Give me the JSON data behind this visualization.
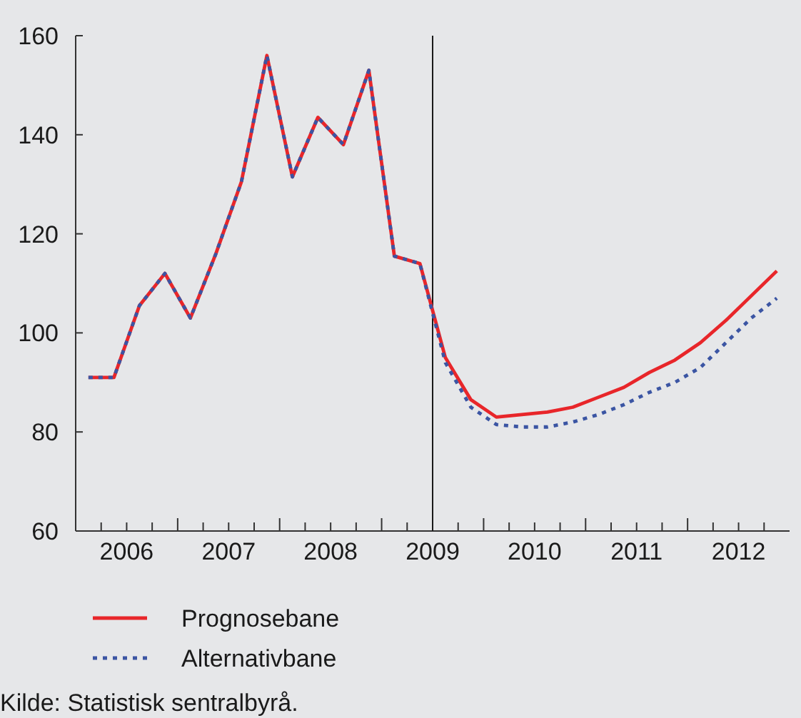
{
  "chart_data": {
    "type": "line",
    "x": [
      2006.125,
      2006.375,
      2006.625,
      2006.875,
      2007.125,
      2007.375,
      2007.625,
      2007.875,
      2008.125,
      2008.375,
      2008.625,
      2008.875,
      2009.125,
      2009.375,
      2009.625,
      2009.875,
      2010.125,
      2010.375,
      2010.625,
      2010.875,
      2011.125,
      2011.375,
      2011.625,
      2011.875,
      2012.125,
      2012.375,
      2012.625,
      2012.875
    ],
    "series": [
      {
        "name": "Prognosebane",
        "color": "#e8262a",
        "line_style": "solid",
        "values": [
          91,
          91,
          105.5,
          112,
          103,
          116,
          130.5,
          156,
          131.5,
          143.5,
          138,
          153,
          115.5,
          114,
          95,
          86.5,
          83,
          83.5,
          84,
          85,
          87,
          89,
          92,
          94.5,
          98,
          102.5,
          107.5,
          112.5
        ]
      },
      {
        "name": "Alternativbane",
        "color": "#3b55a3",
        "line_style": "dotted",
        "values": [
          91,
          91,
          105.5,
          112,
          103,
          116,
          130.5,
          156,
          131.5,
          143.5,
          138,
          153,
          115.5,
          114,
          94,
          85,
          81.5,
          81,
          81,
          82,
          83.5,
          85.5,
          88,
          90,
          93,
          98,
          103,
          107
        ]
      }
    ],
    "xlim": [
      2006,
      2013
    ],
    "xticks": [
      {
        "value": 2006,
        "label": null
      },
      {
        "value": 2006.25,
        "label": null
      },
      {
        "value": 2006.5,
        "label": "2006"
      },
      {
        "value": 2006.75,
        "label": null
      },
      {
        "value": 2007,
        "label": null
      },
      {
        "value": 2007.25,
        "label": null
      },
      {
        "value": 2007.5,
        "label": "2007"
      },
      {
        "value": 2007.75,
        "label": null
      },
      {
        "value": 2008,
        "label": null
      },
      {
        "value": 2008.25,
        "label": null
      },
      {
        "value": 2008.5,
        "label": "2008"
      },
      {
        "value": 2008.75,
        "label": null
      },
      {
        "value": 2009,
        "label": null
      },
      {
        "value": 2009.25,
        "label": null
      },
      {
        "value": 2009.5,
        "label": "2009"
      },
      {
        "value": 2009.75,
        "label": null
      },
      {
        "value": 2010,
        "label": null
      },
      {
        "value": 2010.25,
        "label": null
      },
      {
        "value": 2010.5,
        "label": "2010"
      },
      {
        "value": 2010.75,
        "label": null
      },
      {
        "value": 2011,
        "label": null
      },
      {
        "value": 2011.25,
        "label": null
      },
      {
        "value": 2011.5,
        "label": "2011"
      },
      {
        "value": 2011.75,
        "label": null
      },
      {
        "value": 2012,
        "label": null
      },
      {
        "value": 2012.25,
        "label": null
      },
      {
        "value": 2012.5,
        "label": "2012"
      },
      {
        "value": 2012.75,
        "label": null
      }
    ],
    "ylim": [
      60,
      160
    ],
    "yticks": [
      60,
      80,
      100,
      120,
      140,
      160
    ],
    "ref_lines": [
      {
        "axis": "x",
        "value": 2009.5,
        "color": "#1a1a1a"
      }
    ],
    "legend": "bottom",
    "grid": false,
    "annotations": [
      "Kilde:  Statistisk sentralbyrå."
    ]
  }
}
